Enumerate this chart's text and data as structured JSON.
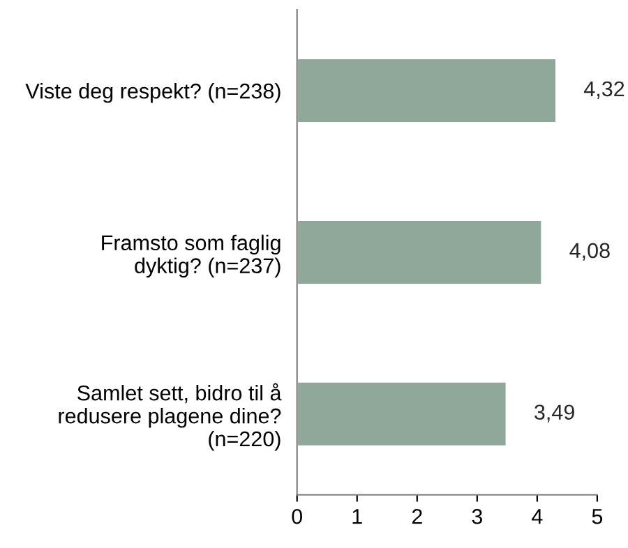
{
  "chart_data": {
    "type": "bar",
    "orientation": "horizontal",
    "categories": [
      "Viste deg respekt? (n=238)",
      "Framsto som faglig\ndyktig? (n=237)",
      "Samlet sett, bidro til å\nredusere plagene dine?\n(n=220)"
    ],
    "values": [
      4.32,
      4.08,
      3.49
    ],
    "value_labels": [
      "4,32",
      "4,08",
      "3,49"
    ],
    "color": "#8fa89a",
    "xlim": [
      0,
      5
    ],
    "xticks": [
      0,
      1,
      2,
      3,
      4,
      5
    ],
    "grid": false,
    "legend": false
  }
}
